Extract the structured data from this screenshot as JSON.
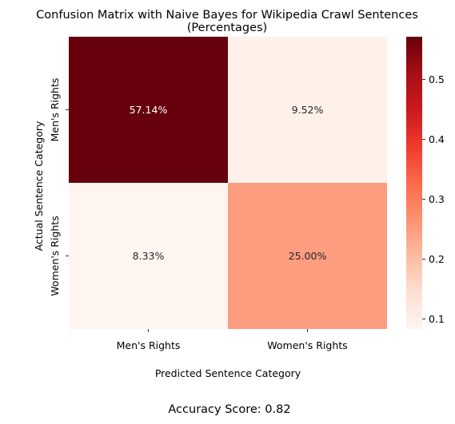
{
  "chart_data": {
    "type": "heatmap",
    "title": "Confusion Matrix with Naive Bayes for Wikipedia Crawl Sentences",
    "subtitle": "(Percentages)",
    "xlabel": "Predicted Sentence Category",
    "ylabel": "Actual Sentence Category",
    "x_categories": [
      "Men's Rights",
      "Women's Rights"
    ],
    "y_categories": [
      "Men's Rights",
      "Women's Rights"
    ],
    "values": [
      [
        0.5714,
        0.0952
      ],
      [
        0.0833,
        0.25
      ]
    ],
    "cell_labels": [
      [
        "57.14%",
        "9.52%"
      ],
      [
        "8.33%",
        "25.00%"
      ]
    ],
    "colormap": "Reds",
    "colorbar": {
      "min": 0.0833,
      "max": 0.5714,
      "ticks": [
        0.1,
        0.2,
        0.3,
        0.4,
        0.5
      ],
      "tick_labels": [
        "0.1",
        "0.2",
        "0.3",
        "0.4",
        "0.5"
      ]
    },
    "grid": false,
    "legend": "colorbar-right"
  },
  "footer": {
    "accuracy_text": "Accuracy Score: 0.82"
  }
}
